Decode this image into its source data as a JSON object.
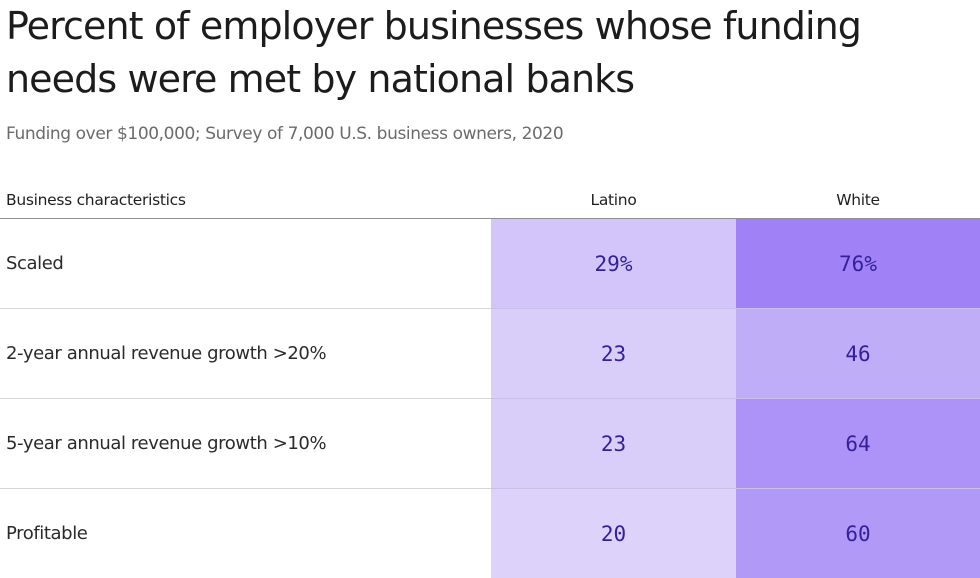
{
  "title": "Percent of employer businesses whose funding needs were met by national banks",
  "subtitle": "Funding over $100,000; Survey of 7,000 U.S. business owners, 2020",
  "chart_data": {
    "type": "table",
    "columns": [
      "Business characteristics",
      "Latino",
      "White"
    ],
    "rows": [
      {
        "label": "Scaled",
        "latino": 29,
        "white": 76,
        "latino_text": "29%",
        "white_text": "76%"
      },
      {
        "label": "2-year annual revenue growth >20%",
        "latino": 23,
        "white": 46,
        "latino_text": "23",
        "white_text": "46"
      },
      {
        "label": "5-year annual revenue growth >10%",
        "latino": 23,
        "white": 64,
        "latino_text": "23",
        "white_text": "64"
      },
      {
        "label": "Profitable",
        "latino": 20,
        "white": 60,
        "latino_text": "20",
        "white_text": "60"
      }
    ],
    "unit": "%",
    "color_scale": {
      "low": "#f2effb",
      "high": "#a082f6"
    }
  }
}
